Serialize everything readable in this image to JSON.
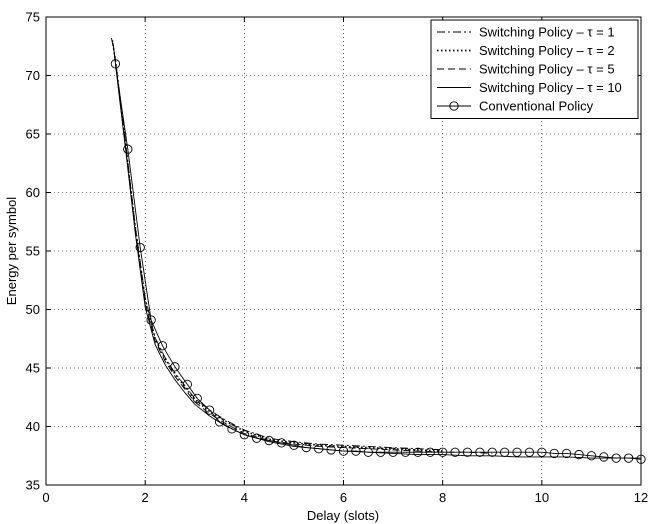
{
  "chart_data": {
    "type": "line",
    "title": "",
    "xlabel": "Delay (slots)",
    "ylabel": "Energy per symbol",
    "xlim": [
      0,
      12
    ],
    "ylim": [
      35,
      75
    ],
    "xticks": [
      0,
      2,
      4,
      6,
      8,
      10,
      12
    ],
    "yticks": [
      35,
      40,
      45,
      50,
      55,
      60,
      65,
      70,
      75
    ],
    "grid": true,
    "legend_position": "top-right",
    "series": [
      {
        "name": "Switching Policy – τ = 1",
        "line_style": "dashdot",
        "color": "#000000",
        "x": [
          1.32,
          1.4,
          1.6,
          1.8,
          2.0,
          2.2,
          2.4,
          2.6,
          2.8,
          3.0,
          3.3,
          3.6,
          4.0,
          4.5,
          5.0,
          5.5,
          6.0,
          6.5,
          7.0,
          7.5,
          8.0
        ],
        "y": [
          73.2,
          71.4,
          64.5,
          57.1,
          51.0,
          47.6,
          45.9,
          44.6,
          43.5,
          42.4,
          41.4,
          40.6,
          39.7,
          39.0,
          38.7,
          38.5,
          38.4,
          38.3,
          38.2,
          38.1,
          38.0
        ]
      },
      {
        "name": "Switching Policy – τ = 2",
        "line_style": "dotted",
        "color": "#000000",
        "x": [
          1.34,
          1.4,
          1.6,
          1.8,
          2.0,
          2.2,
          2.4,
          2.6,
          2.8,
          3.0,
          3.3,
          3.6,
          4.0,
          4.5,
          5.0,
          5.5,
          6.0,
          6.5,
          7.0,
          7.5,
          8.0
        ],
        "y": [
          73.0,
          71.3,
          64.3,
          57.0,
          50.8,
          47.5,
          45.8,
          44.5,
          43.4,
          42.3,
          41.3,
          40.5,
          39.6,
          38.9,
          38.6,
          38.4,
          38.3,
          38.2,
          38.1,
          38.0,
          37.9
        ]
      },
      {
        "name": "Switching Policy – τ = 5",
        "line_style": "dashed",
        "color": "#000000",
        "x": [
          1.35,
          1.4,
          1.6,
          1.8,
          2.0,
          2.2,
          2.4,
          2.6,
          2.8,
          3.0,
          3.3,
          3.6,
          4.0,
          4.5,
          5.0,
          5.5,
          6.0,
          6.5,
          7.0,
          7.5,
          8.0,
          8.5,
          9.0
        ],
        "y": [
          72.8,
          71.1,
          64.1,
          56.8,
          50.5,
          47.3,
          45.6,
          44.3,
          43.2,
          42.1,
          41.1,
          40.3,
          39.4,
          38.8,
          38.5,
          38.3,
          38.2,
          38.1,
          38.0,
          37.9,
          37.8,
          37.8,
          37.7
        ]
      },
      {
        "name": "Switching Policy – τ = 10",
        "line_style": "solid",
        "color": "#000000",
        "x": [
          1.36,
          1.4,
          1.6,
          1.8,
          2.0,
          2.2,
          2.4,
          2.6,
          2.8,
          3.0,
          3.3,
          3.6,
          4.0,
          4.5,
          5.0,
          5.5,
          6.0,
          6.5,
          7.0,
          7.5,
          8.0,
          8.5,
          9.0,
          9.5,
          10.0,
          10.5,
          11.0,
          11.5,
          12.0
        ],
        "y": [
          72.6,
          71.0,
          63.9,
          56.5,
          50.2,
          47.0,
          45.3,
          44.0,
          42.9,
          41.9,
          40.9,
          40.1,
          39.3,
          38.7,
          38.3,
          38.1,
          37.9,
          37.8,
          37.7,
          37.6,
          37.6,
          37.5,
          37.5,
          37.4,
          37.4,
          37.4,
          37.3,
          37.3,
          37.3
        ]
      },
      {
        "name": "Conventional Policy",
        "line_style": "solid",
        "marker": "circle",
        "color": "#000000",
        "x": [
          1.4,
          1.65,
          1.9,
          2.12,
          2.35,
          2.6,
          2.85,
          3.05,
          3.3,
          3.5,
          3.75,
          4.0,
          4.25,
          4.5,
          4.75,
          5.0,
          5.25,
          5.5,
          5.75,
          6.0,
          6.25,
          6.5,
          6.75,
          7.0,
          7.25,
          7.5,
          7.75,
          8.0,
          8.25,
          8.5,
          8.75,
          9.0,
          9.25,
          9.5,
          9.75,
          10.0,
          10.25,
          10.5,
          10.75,
          11.0,
          11.25,
          11.5,
          11.75,
          12.0
        ],
        "y": [
          71.0,
          63.7,
          55.3,
          49.1,
          46.9,
          45.1,
          43.6,
          42.4,
          41.4,
          40.4,
          39.8,
          39.3,
          39.0,
          38.8,
          38.6,
          38.4,
          38.2,
          38.1,
          38.0,
          37.9,
          37.9,
          37.8,
          37.8,
          37.8,
          37.8,
          37.8,
          37.8,
          37.8,
          37.8,
          37.8,
          37.8,
          37.8,
          37.8,
          37.8,
          37.8,
          37.8,
          37.7,
          37.7,
          37.6,
          37.5,
          37.4,
          37.3,
          37.3,
          37.2
        ]
      }
    ]
  }
}
